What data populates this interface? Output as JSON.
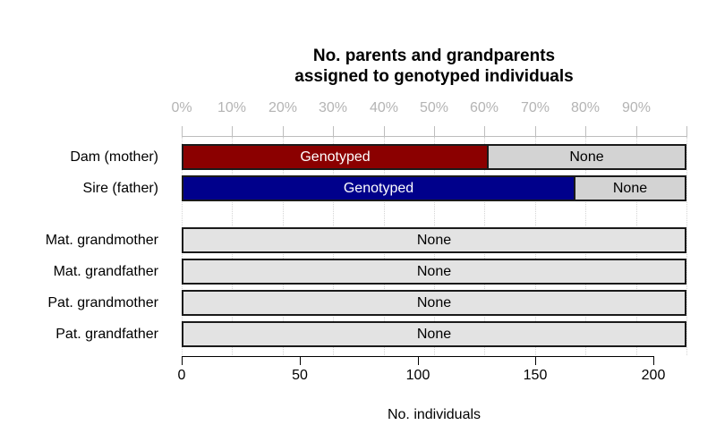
{
  "chart_data": {
    "type": "bar",
    "orientation": "horizontal",
    "stacked": true,
    "title": "No. parents and grandparents\nassigned to genotyped individuals",
    "total_individuals": 214,
    "top_axis": {
      "unit": "percent",
      "tick_percents": [
        0,
        10,
        20,
        30,
        40,
        50,
        60,
        70,
        80,
        90,
        100
      ],
      "labels": [
        "0%",
        "10%",
        "20%",
        "30%",
        "40%",
        "50%",
        "60%",
        "70%",
        "80%",
        "90%"
      ]
    },
    "bottom_axis": {
      "ticks": [
        0,
        50,
        100,
        150,
        200
      ],
      "label": "No. individuals"
    },
    "grid": "dotted-vertical-at-10-percent",
    "legend_position": "none",
    "colors": {
      "dam_genotyped": "#8B0000",
      "sire_genotyped": "#00008B",
      "parent_none": "#D3D3D3",
      "grandparent_none": "#E3E3E3",
      "bar_border": "#1A1A1A",
      "top_axis": "#BDBDBD",
      "top_axis_text": "#B4B4B4",
      "gridline": "#D4D4D4",
      "bottom_axis": "#000000"
    },
    "rows": [
      {
        "label": "Dam (mother)",
        "group": "parents",
        "segments": [
          {
            "name": "Genotyped",
            "value": 130,
            "percent": 60.7,
            "color_key": "dam_genotyped",
            "text_color": "#FFFFFF"
          },
          {
            "name": "None",
            "value": 84,
            "percent": 39.3,
            "color_key": "parent_none",
            "text_color": "#000000"
          }
        ]
      },
      {
        "label": "Sire (father)",
        "group": "parents",
        "segments": [
          {
            "name": "Genotyped",
            "value": 167,
            "percent": 78.0,
            "color_key": "sire_genotyped",
            "text_color": "#FFFFFF"
          },
          {
            "name": "None",
            "value": 47,
            "percent": 22.0,
            "color_key": "parent_none",
            "text_color": "#000000"
          }
        ]
      },
      {
        "label": "Mat. grandmother",
        "group": "grandparents",
        "segments": [
          {
            "name": "None",
            "value": 214,
            "percent": 100,
            "color_key": "grandparent_none",
            "text_color": "#000000"
          }
        ]
      },
      {
        "label": "Mat. grandfather",
        "group": "grandparents",
        "segments": [
          {
            "name": "None",
            "value": 214,
            "percent": 100,
            "color_key": "grandparent_none",
            "text_color": "#000000"
          }
        ]
      },
      {
        "label": "Pat. grandmother",
        "group": "grandparents",
        "segments": [
          {
            "name": "None",
            "value": 214,
            "percent": 100,
            "color_key": "grandparent_none",
            "text_color": "#000000"
          }
        ]
      },
      {
        "label": "Pat. grandfather",
        "group": "grandparents",
        "segments": [
          {
            "name": "None",
            "value": 214,
            "percent": 100,
            "color_key": "grandparent_none",
            "text_color": "#000000"
          }
        ]
      }
    ]
  }
}
